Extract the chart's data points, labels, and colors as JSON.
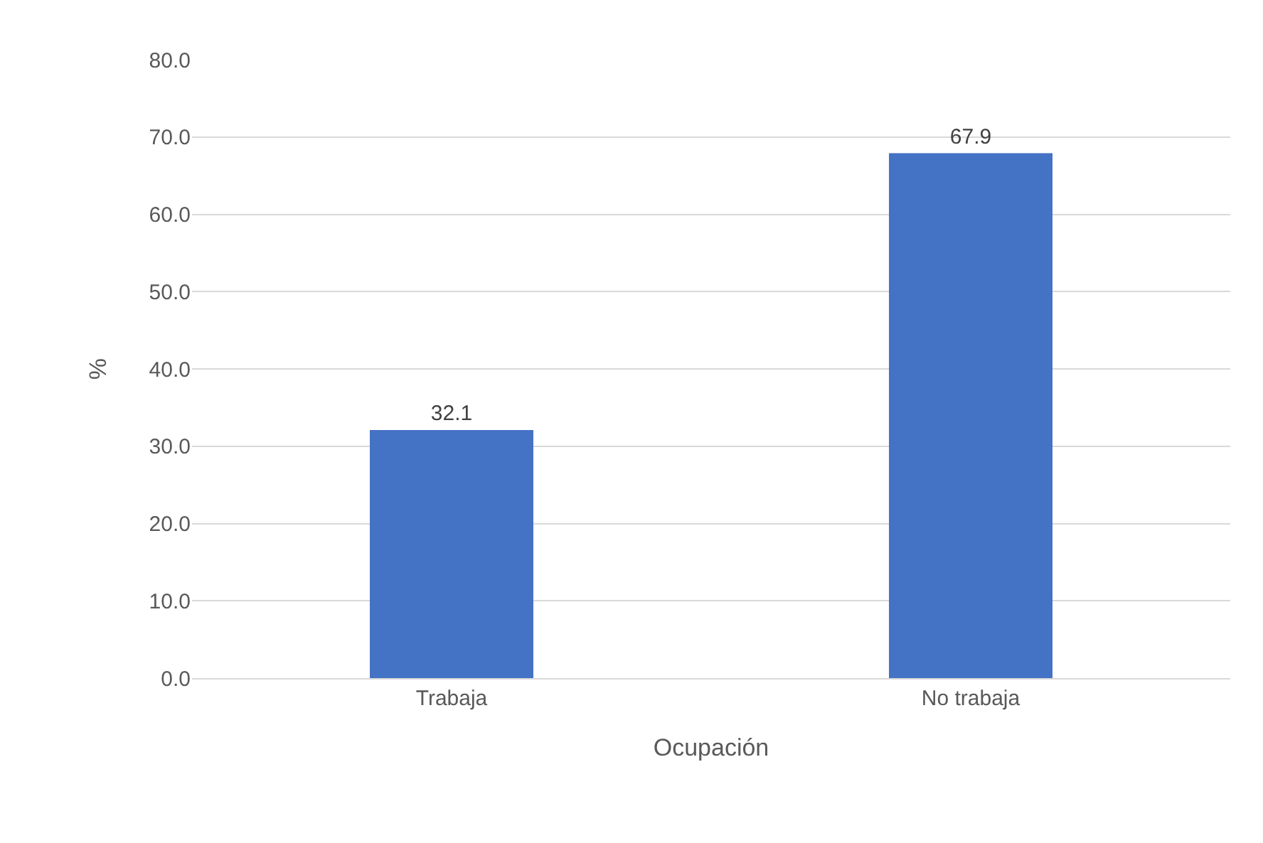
{
  "chart_data": {
    "type": "bar",
    "categories": [
      "Trabaja",
      "No trabaja"
    ],
    "values": [
      32.1,
      67.9
    ],
    "color": "#4472c4",
    "xlabel": "Ocupación",
    "ylabel": "%",
    "ylim": [
      0,
      80
    ],
    "yticks": [
      {
        "value": 0,
        "label": "0.0"
      },
      {
        "value": 10,
        "label": "10.0"
      },
      {
        "value": 20,
        "label": "20.0"
      },
      {
        "value": 30,
        "label": "30.0"
      },
      {
        "value": 40,
        "label": "40.0"
      },
      {
        "value": 50,
        "label": "50.0"
      },
      {
        "value": 60,
        "label": "60.0"
      },
      {
        "value": 70,
        "label": "70.0"
      },
      {
        "value": 80,
        "label": "80.0"
      }
    ],
    "grid": "y",
    "data_labels": true
  }
}
